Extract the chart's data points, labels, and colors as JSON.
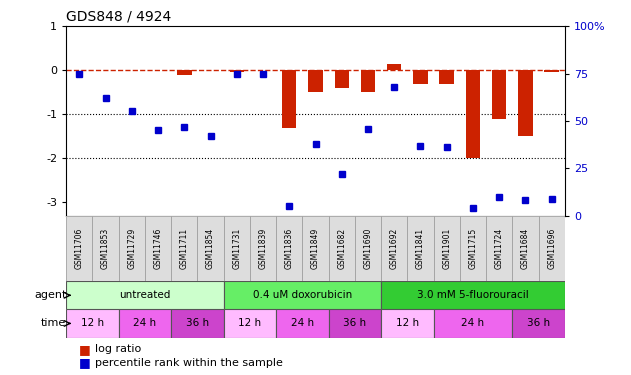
{
  "title": "GDS848 / 4924",
  "samples": [
    "GSM11706",
    "GSM11853",
    "GSM11729",
    "GSM11746",
    "GSM11711",
    "GSM11854",
    "GSM11731",
    "GSM11839",
    "GSM11836",
    "GSM11849",
    "GSM11682",
    "GSM11690",
    "GSM11692",
    "GSM11841",
    "GSM11901",
    "GSM11715",
    "GSM11724",
    "GSM11684",
    "GSM11696"
  ],
  "log_ratio": [
    0.0,
    0.0,
    0.0,
    0.0,
    -0.1,
    0.0,
    -0.05,
    0.0,
    -1.3,
    -0.5,
    -0.4,
    -0.5,
    0.15,
    -0.3,
    -0.3,
    -2.0,
    -1.1,
    -1.5,
    -0.05
  ],
  "percentile_rank": [
    75,
    62,
    55,
    45,
    47,
    42,
    75,
    75,
    5,
    38,
    22,
    46,
    68,
    37,
    36,
    4,
    10,
    8,
    9
  ],
  "ylim_left": [
    -3.3,
    1.0
  ],
  "ylim_right": [
    0,
    100
  ],
  "yticks_left": [
    1,
    0,
    -1,
    -2,
    -3
  ],
  "yticks_right": [
    0,
    25,
    50,
    75,
    100
  ],
  "agent_groups": [
    {
      "label": "untreated",
      "start": 0,
      "end": 6,
      "color": "#ccffcc"
    },
    {
      "label": "0.4 uM doxorubicin",
      "start": 6,
      "end": 12,
      "color": "#66ee66"
    },
    {
      "label": "3.0 mM 5-fluorouracil",
      "start": 12,
      "end": 19,
      "color": "#33cc33"
    }
  ],
  "time_groups": [
    {
      "label": "12 h",
      "start": 0,
      "end": 2,
      "color": "#ffbbff"
    },
    {
      "label": "24 h",
      "start": 2,
      "end": 4,
      "color": "#ee66ee"
    },
    {
      "label": "36 h",
      "start": 4,
      "end": 6,
      "color": "#cc44cc"
    },
    {
      "label": "12 h",
      "start": 6,
      "end": 8,
      "color": "#ffbbff"
    },
    {
      "label": "24 h",
      "start": 8,
      "end": 10,
      "color": "#ee66ee"
    },
    {
      "label": "36 h",
      "start": 10,
      "end": 12,
      "color": "#cc44cc"
    },
    {
      "label": "12 h",
      "start": 12,
      "end": 14,
      "color": "#ffbbff"
    },
    {
      "label": "24 h",
      "start": 14,
      "end": 17,
      "color": "#ee66ee"
    },
    {
      "label": "36 h",
      "start": 17,
      "end": 19,
      "color": "#cc44cc"
    }
  ],
  "bar_color": "#cc2200",
  "dot_color": "#0000cc",
  "ref_line_color": "#cc2200",
  "grid_line_color": "#000000",
  "background_color": "#ffffff",
  "label_color_right": "#0000cc",
  "sample_bg_color": "#dddddd",
  "sample_edge_color": "#999999"
}
